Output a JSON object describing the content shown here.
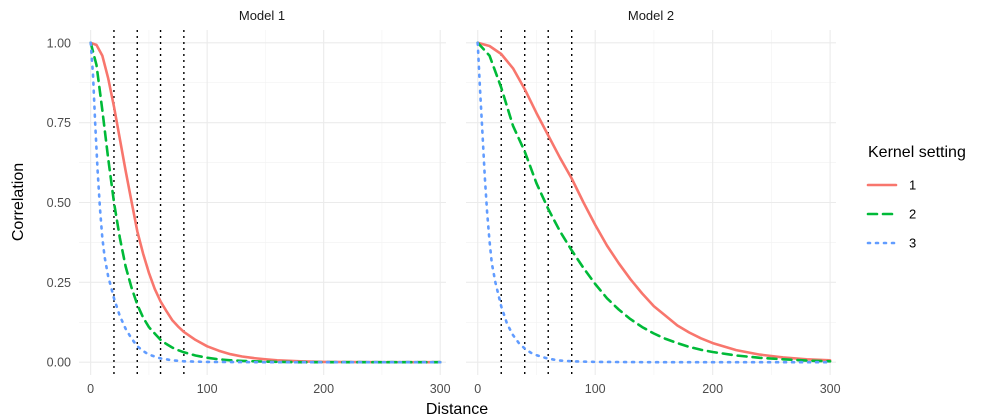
{
  "chart_data": {
    "type": "line",
    "xlabel": "Distance",
    "ylabel": "Correlation",
    "xlim": [
      -10,
      305
    ],
    "ylim": [
      -0.04,
      1.04
    ],
    "x_ticks": [
      0,
      100,
      200,
      300
    ],
    "x_tick_labels": [
      "0",
      "100",
      "200",
      "300"
    ],
    "y_ticks": [
      0,
      0.25,
      0.5,
      0.75,
      1
    ],
    "y_tick_labels": [
      "0.00",
      "0.25",
      "0.50",
      "0.75",
      "1.00"
    ],
    "grid": true,
    "vlines": [
      20,
      40,
      60,
      80
    ],
    "legend": {
      "title": "Kernel setting",
      "placement": "right",
      "items": [
        {
          "label": "1",
          "color": "#F8766D",
          "linetype": "solid"
        },
        {
          "label": "2",
          "color": "#00BA38",
          "linetype": "dashed"
        },
        {
          "label": "3",
          "color": "#619CFF",
          "linetype": "dotted"
        }
      ]
    },
    "panels": [
      {
        "title": "Model 1",
        "series": [
          {
            "name": "1",
            "color": "#F8766D",
            "linetype": "solid",
            "x": [
              0,
              5,
              10,
              15,
              20,
              25,
              30,
              35,
              40,
              45,
              50,
              55,
              60,
              65,
              70,
              75,
              80,
              90,
              100,
              110,
              120,
              130,
              140,
              150,
              160,
              180,
              200,
              250,
              300
            ],
            "y": [
              1.0,
              0.993,
              0.96,
              0.89,
              0.8,
              0.7,
              0.6,
              0.505,
              0.41,
              0.34,
              0.28,
              0.23,
              0.19,
              0.16,
              0.132,
              0.112,
              0.095,
              0.07,
              0.05,
              0.036,
              0.025,
              0.018,
              0.013,
              0.009,
              0.006,
              0.003,
              0.001,
              0.0,
              0.0
            ]
          },
          {
            "name": "2",
            "color": "#00BA38",
            "linetype": "dashed",
            "x": [
              0,
              5,
              10,
              15,
              20,
              25,
              30,
              35,
              40,
              45,
              50,
              55,
              60,
              65,
              70,
              75,
              80,
              90,
              100,
              110,
              120,
              130,
              140,
              150,
              160,
              180,
              200,
              250,
              300
            ],
            "y": [
              1.0,
              0.93,
              0.79,
              0.64,
              0.5,
              0.39,
              0.3,
              0.235,
              0.18,
              0.14,
              0.11,
              0.09,
              0.07,
              0.057,
              0.046,
              0.038,
              0.031,
              0.021,
              0.014,
              0.009,
              0.006,
              0.004,
              0.003,
              0.002,
              0.001,
              0.0,
              0.0,
              0.0,
              0.0
            ]
          },
          {
            "name": "3",
            "color": "#619CFF",
            "linetype": "dotted",
            "x": [
              0,
              2,
              4,
              6,
              8,
              10,
              12,
              15,
              20,
              25,
              30,
              35,
              40,
              45,
              50,
              60,
              70,
              80,
              100,
              150,
              200,
              250,
              300
            ],
            "y": [
              1.0,
              0.9,
              0.74,
              0.6,
              0.48,
              0.39,
              0.33,
              0.27,
              0.2,
              0.145,
              0.105,
              0.075,
              0.05,
              0.035,
              0.024,
              0.012,
              0.006,
              0.003,
              0.001,
              0.0,
              0.0,
              0.0,
              0.0
            ]
          }
        ]
      },
      {
        "title": "Model 2",
        "series": [
          {
            "name": "1",
            "color": "#F8766D",
            "linetype": "solid",
            "x": [
              0,
              10,
              20,
              30,
              40,
              50,
              60,
              70,
              80,
              90,
              100,
              110,
              120,
              130,
              140,
              150,
              160,
              170,
              180,
              190,
              200,
              220,
              240,
              260,
              280,
              300
            ],
            "y": [
              1.0,
              0.99,
              0.965,
              0.92,
              0.855,
              0.78,
              0.71,
              0.64,
              0.575,
              0.5,
              0.43,
              0.365,
              0.31,
              0.26,
              0.215,
              0.175,
              0.145,
              0.115,
              0.093,
              0.075,
              0.06,
              0.038,
              0.024,
              0.015,
              0.009,
              0.006
            ]
          },
          {
            "name": "2",
            "color": "#00BA38",
            "linetype": "dashed",
            "x": [
              0,
              10,
              20,
              30,
              40,
              50,
              60,
              70,
              80,
              90,
              100,
              110,
              120,
              130,
              140,
              150,
              160,
              170,
              180,
              190,
              200,
              220,
              240,
              260,
              280,
              300
            ],
            "y": [
              1.0,
              0.96,
              0.86,
              0.74,
              0.66,
              0.56,
              0.48,
              0.41,
              0.35,
              0.295,
              0.245,
              0.2,
              0.165,
              0.135,
              0.11,
              0.09,
              0.073,
              0.06,
              0.048,
              0.039,
              0.032,
              0.021,
              0.014,
              0.009,
              0.005,
              0.003
            ]
          },
          {
            "name": "3",
            "color": "#619CFF",
            "linetype": "dotted",
            "x": [
              0,
              2,
              4,
              6,
              8,
              10,
              12,
              15,
              20,
              25,
              30,
              35,
              40,
              45,
              50,
              60,
              70,
              80,
              100,
              150,
              200,
              250,
              300
            ],
            "y": [
              1.0,
              0.85,
              0.72,
              0.58,
              0.47,
              0.38,
              0.31,
              0.25,
              0.175,
              0.12,
              0.085,
              0.06,
              0.043,
              0.03,
              0.022,
              0.011,
              0.005,
              0.003,
              0.001,
              0.0,
              0.0,
              0.0,
              0.0
            ]
          }
        ]
      }
    ]
  }
}
